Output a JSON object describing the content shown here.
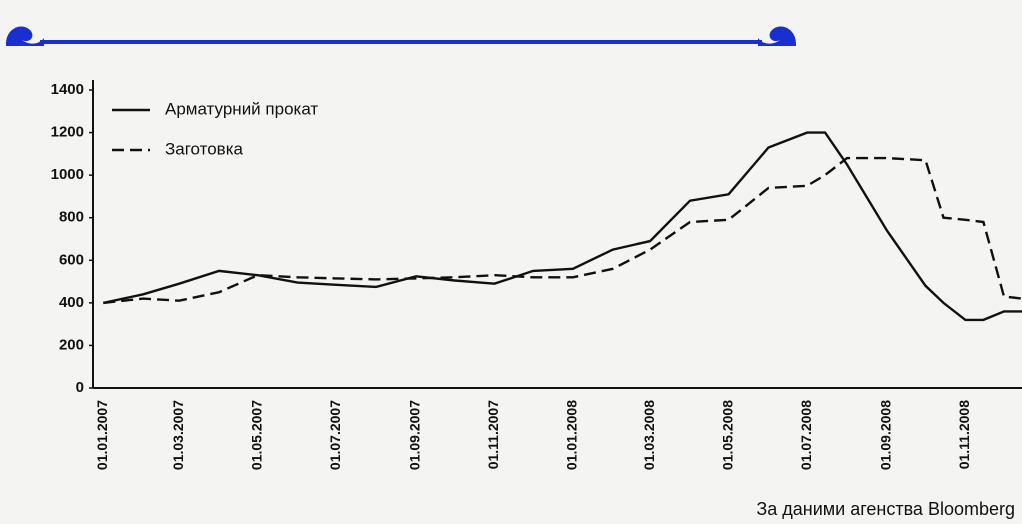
{
  "chart_data": {
    "type": "line",
    "x": [
      "01.01.2007",
      "01.02.2007",
      "01.03.2007",
      "01.04.2007",
      "01.05.2007",
      "01.06.2007",
      "01.07.2007",
      "01.08.2007",
      "01.09.2007",
      "01.10.2007",
      "01.11.2007",
      "01.12.2007",
      "01.01.2008",
      "01.02.2008",
      "01.03.2008",
      "01.04.2008",
      "01.05.2008",
      "01.06.2008",
      "01.07.2008",
      "15.07.2008",
      "01.08.2008",
      "01.09.2008",
      "01.10.2008",
      "15.10.2008",
      "01.11.2008",
      "15.11.2008",
      "01.12.2008",
      "15.12.2008"
    ],
    "series": [
      {
        "name": "Арматурний прокат",
        "color": "#111111",
        "linestyle": "solid",
        "values": [
          400,
          440,
          490,
          550,
          530,
          495,
          485,
          475,
          525,
          505,
          490,
          550,
          560,
          650,
          690,
          880,
          910,
          1130,
          1200,
          1200,
          1050,
          740,
          480,
          400,
          320,
          320,
          360,
          360
        ]
      },
      {
        "name": "Заготовка",
        "color": "#111111",
        "linestyle": "dashed",
        "values": [
          400,
          420,
          410,
          450,
          530,
          520,
          515,
          510,
          515,
          520,
          530,
          520,
          520,
          560,
          650,
          780,
          790,
          940,
          950,
          1000,
          1080,
          1080,
          1070,
          800,
          790,
          780,
          430,
          420
        ]
      }
    ],
    "xlim": [
      "24.12.2006",
      "15.12.2008"
    ],
    "xticks": [
      "01.01.2007",
      "01.03.2007",
      "01.05.2007",
      "01.07.2007",
      "01.09.2007",
      "01.11.2007",
      "01.01.2008",
      "01.03.2008",
      "01.05.2008",
      "01.07.2008",
      "01.09.2008",
      "01.11.2008"
    ],
    "ylim": [
      0,
      1400
    ],
    "yticks": [
      0,
      200,
      400,
      600,
      800,
      1000,
      1200,
      1400
    ],
    "grid": false,
    "legend": "top-left",
    "source": "За даними агенства Bloomberg"
  }
}
